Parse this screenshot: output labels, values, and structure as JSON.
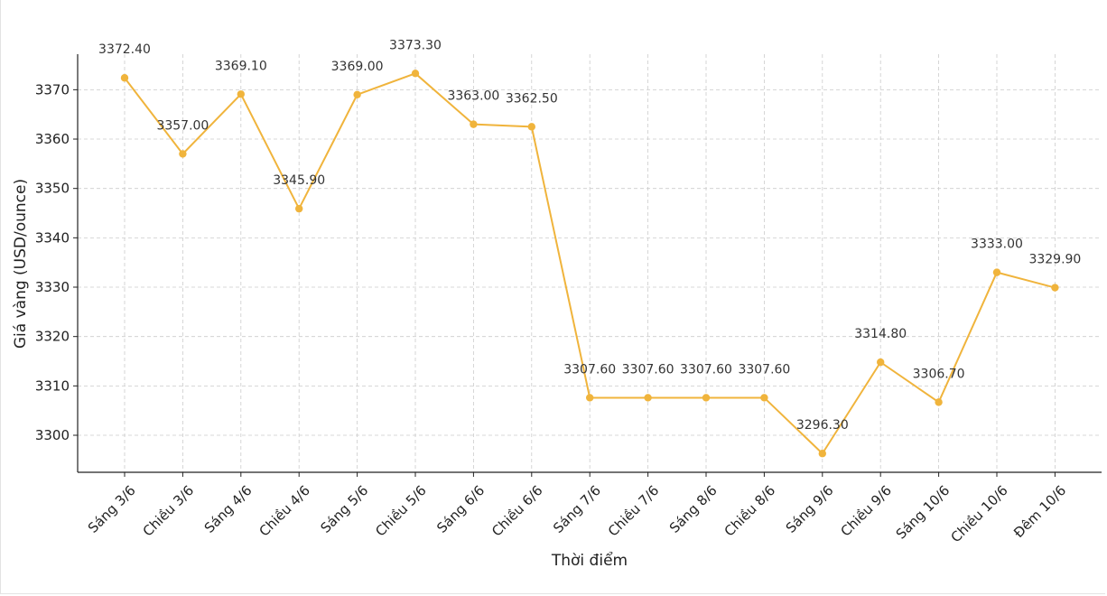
{
  "chart_data": {
    "type": "line",
    "title": "",
    "xlabel": "Thời điểm",
    "ylabel": "Giá vàng (USD/ounce)",
    "categories": [
      "Sáng 3/6",
      "Chiều 3/6",
      "Sáng 4/6",
      "Chiều 4/6",
      "Sáng 5/6",
      "Chiều 5/6",
      "Sáng 6/6",
      "Chiều 6/6",
      "Sáng 7/6",
      "Chiều 7/6",
      "Sáng 8/6",
      "Chiều 8/6",
      "Sáng 9/6",
      "Chiều 9/6",
      "Sáng 10/6",
      "Chiều 10/6",
      "Đêm 10/6"
    ],
    "values": [
      3372.4,
      3357.0,
      3369.1,
      3345.9,
      3369.0,
      3373.3,
      3363.0,
      3362.5,
      3307.6,
      3307.6,
      3307.6,
      3307.6,
      3296.3,
      3314.8,
      3306.7,
      3333.0,
      3329.9
    ],
    "data_labels": [
      "3372.40",
      "3357.00",
      "3369.10",
      "3345.90",
      "3369.00",
      "3373.30",
      "3363.00",
      "3362.50",
      "3307.60",
      "3307.60",
      "3307.60",
      "3307.60",
      "3296.30",
      "3314.80",
      "3306.70",
      "3333.00",
      "3329.90"
    ],
    "yticks": [
      3300,
      3310,
      3320,
      3330,
      3340,
      3350,
      3360,
      3370
    ],
    "ylim": [
      3292.5,
      3377.2
    ],
    "grid": true,
    "line_color": "#f0b43c"
  }
}
